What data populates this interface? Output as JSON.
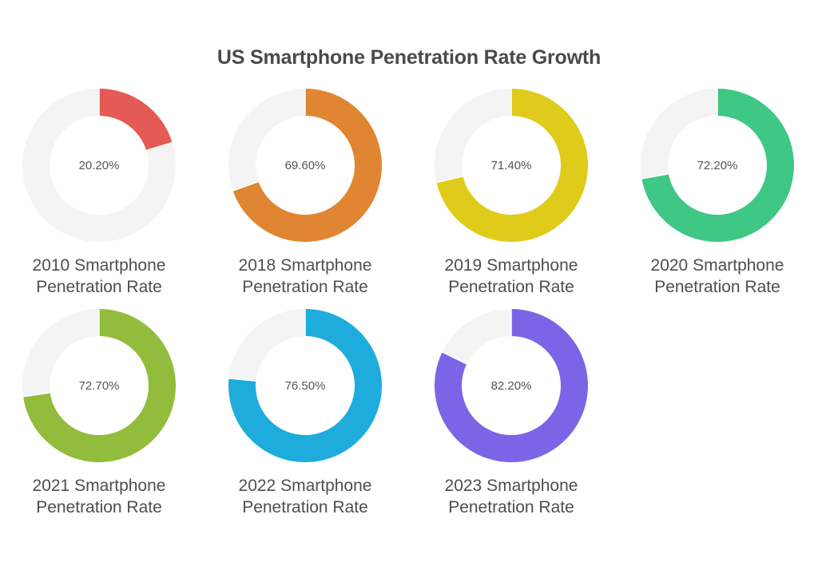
{
  "title": "US Smartphone Penetration Rate Growth",
  "chart_data": {
    "type": "pie",
    "subtype": "donut-grid",
    "title": "US Smartphone Penetration Rate Growth",
    "value_max": 100,
    "remainder_color": "#F4F4F4",
    "charts": [
      {
        "year": "2010",
        "label_line1": "2010 Smartphone",
        "label_line2": "Penetration Rate",
        "value": 20.2,
        "value_label": "20.20%",
        "color": "#E45A55"
      },
      {
        "year": "2018",
        "label_line1": "2018 Smartphone",
        "label_line2": "Penetration Rate",
        "value": 69.6,
        "value_label": "69.60%",
        "color": "#E08532"
      },
      {
        "year": "2019",
        "label_line1": "2019 Smartphone",
        "label_line2": "Penetration Rate",
        "value": 71.4,
        "value_label": "71.40%",
        "color": "#DFCB1A"
      },
      {
        "year": "2020",
        "label_line1": "2020 Smartphone",
        "label_line2": "Penetration Rate",
        "value": 72.2,
        "value_label": "72.20%",
        "color": "#3EC785"
      },
      {
        "year": "2021",
        "label_line1": "2021 Smartphone",
        "label_line2": "Penetration Rate",
        "value": 72.7,
        "value_label": "72.70%",
        "color": "#92BC3B"
      },
      {
        "year": "2022",
        "label_line1": "2022 Smartphone",
        "label_line2": "Penetration Rate",
        "value": 76.5,
        "value_label": "76.50%",
        "color": "#1EACDD"
      },
      {
        "year": "2023",
        "label_line1": "2023 Smartphone",
        "label_line2": "Penetration Rate",
        "value": 82.2,
        "value_label": "82.20%",
        "color": "#7B65E6"
      }
    ]
  }
}
